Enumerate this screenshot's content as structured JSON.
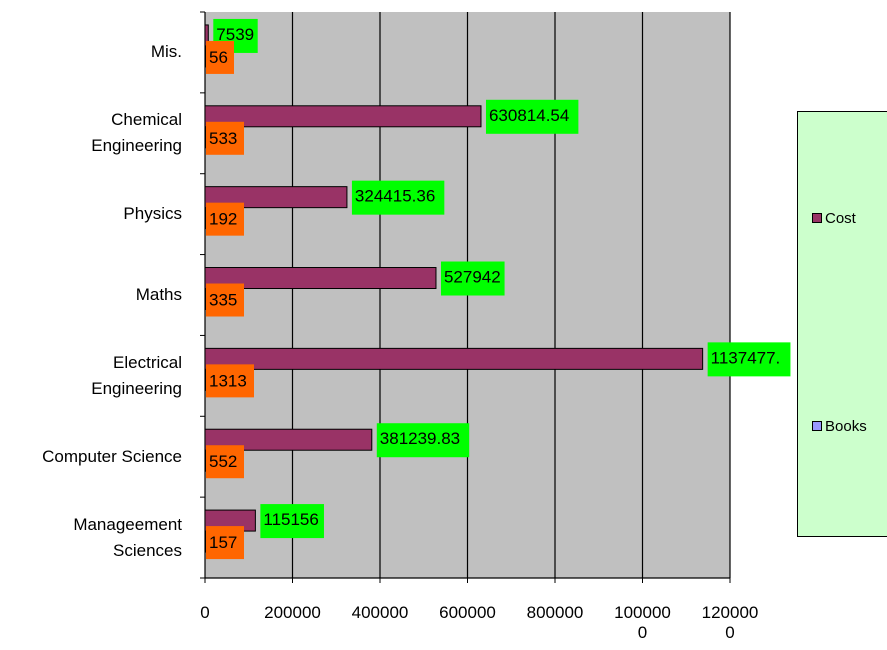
{
  "chart_data": {
    "type": "bar",
    "orientation": "horizontal",
    "categories": [
      [
        "Manageement",
        "Sciences"
      ],
      [
        "Computer Science"
      ],
      [
        "Electrical",
        "Engineering"
      ],
      [
        "Maths"
      ],
      [
        "Physics"
      ],
      [
        "Chemical",
        "Engineering"
      ],
      [
        "Mis."
      ]
    ],
    "series": [
      {
        "name": "Cost",
        "color": "#993366",
        "values": [
          115156,
          381239.83,
          1137477,
          527942,
          324415.36,
          630814.54,
          7539
        ],
        "labels": [
          "115156",
          "381239.83",
          "1137477.",
          "527942",
          "324415.36",
          "630814.54",
          "7539"
        ]
      },
      {
        "name": "Books",
        "color": "#9999ff",
        "values": [
          157,
          552,
          1313,
          335,
          192,
          533,
          56
        ],
        "labels": [
          "157",
          "552",
          "1313",
          "335",
          "192",
          "533",
          "56"
        ]
      }
    ],
    "xlim": [
      0,
      1200000
    ],
    "xticks": [
      [
        "0"
      ],
      [
        "200000"
      ],
      [
        "400000"
      ],
      [
        "600000"
      ],
      [
        "800000"
      ],
      [
        "100000",
        "0"
      ],
      [
        "120000",
        "0"
      ]
    ],
    "grid": true,
    "legend_position": "right",
    "plot_background": "#c0c0c0",
    "cost_label_background": "#00ff00",
    "books_label_background": "#ff6600"
  }
}
